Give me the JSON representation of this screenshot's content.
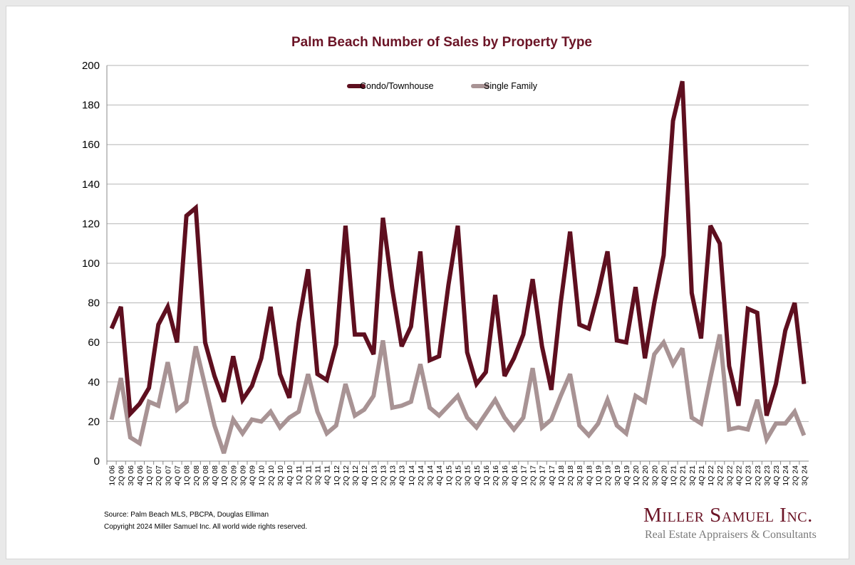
{
  "chart_data": {
    "type": "line",
    "title": "Palm Beach Number of Sales by Property Type",
    "xlabel": "",
    "ylabel": "",
    "ylim": [
      0,
      200
    ],
    "yticks": [
      0,
      20,
      40,
      60,
      80,
      100,
      120,
      140,
      160,
      180,
      200
    ],
    "grid": true,
    "legend_position": "top-center",
    "categories": [
      "1Q 06",
      "2Q 06",
      "3Q 06",
      "4Q 06",
      "1Q 07",
      "2Q 07",
      "3Q 07",
      "4Q 07",
      "1Q 08",
      "2Q 08",
      "3Q 08",
      "4Q 08",
      "1Q 09",
      "2Q 09",
      "3Q 09",
      "4Q 09",
      "1Q 10",
      "2Q 10",
      "3Q 10",
      "4Q 10",
      "1Q 11",
      "2Q 11",
      "3Q 11",
      "4Q 11",
      "1Q 12",
      "2Q 12",
      "3Q 12",
      "4Q 12",
      "1Q 13",
      "2Q 13",
      "3Q 13",
      "4Q 13",
      "1Q 14",
      "2Q 14",
      "3Q 14",
      "4Q 14",
      "1Q 15",
      "2Q 15",
      "3Q 15",
      "4Q 15",
      "1Q 16",
      "2Q 16",
      "3Q 16",
      "4Q 16",
      "1Q 17",
      "2Q 17",
      "3Q 17",
      "4Q 17",
      "1Q 18",
      "2Q 18",
      "3Q 18",
      "4Q 18",
      "1Q 19",
      "2Q 19",
      "3Q 19",
      "4Q 19",
      "1Q 20",
      "2Q 20",
      "3Q 20",
      "4Q 20",
      "1Q 21",
      "2Q 21",
      "3Q 21",
      "4Q 21",
      "1Q 22",
      "2Q 22",
      "3Q 22",
      "4Q 22",
      "1Q 23",
      "2Q 23",
      "3Q 23",
      "4Q 23",
      "1Q 24",
      "2Q 24",
      "3Q 24"
    ],
    "series": [
      {
        "name": "Condo/Townhouse",
        "color": "#5e0f1f",
        "values": [
          67,
          78,
          24,
          29,
          37,
          69,
          78,
          60,
          124,
          128,
          60,
          43,
          30,
          53,
          31,
          38,
          52,
          78,
          44,
          32,
          70,
          97,
          44,
          41,
          59,
          119,
          64,
          64,
          54,
          123,
          87,
          58,
          68,
          106,
          51,
          53,
          89,
          119,
          55,
          39,
          45,
          84,
          43,
          52,
          64,
          92,
          58,
          36,
          80,
          116,
          69,
          67,
          85,
          106,
          61,
          60,
          88,
          52,
          80,
          104,
          172,
          192,
          85,
          62,
          119,
          110,
          48,
          28,
          77,
          75,
          23,
          39,
          66,
          80,
          39
        ]
      },
      {
        "name": "Single Family",
        "color": "#a89394",
        "values": [
          21,
          42,
          12,
          9,
          30,
          28,
          50,
          26,
          30,
          58,
          38,
          18,
          4,
          21,
          14,
          21,
          20,
          25,
          17,
          22,
          25,
          44,
          25,
          14,
          18,
          39,
          23,
          26,
          33,
          61,
          27,
          28,
          30,
          49,
          27,
          23,
          28,
          33,
          22,
          17,
          24,
          31,
          22,
          16,
          22,
          47,
          17,
          21,
          33,
          44,
          18,
          13,
          19,
          31,
          18,
          14,
          33,
          30,
          54,
          60,
          49,
          57,
          22,
          19,
          42,
          64,
          16,
          17,
          16,
          31,
          11,
          19,
          19,
          25,
          13
        ]
      }
    ]
  },
  "footer": {
    "source": "Source: Palm Beach MLS, PBCPA, Douglas Elliman",
    "copyright": "Copyright 2024 Miller Samuel Inc.  All world wide rights reserved.",
    "logo_name": "Miller Samuel Inc.",
    "logo_tagline": "Real Estate Appraisers & Consultants"
  }
}
